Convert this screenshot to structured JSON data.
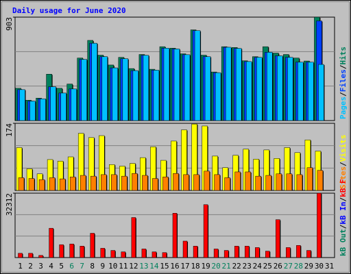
{
  "chart_data": {
    "type": "bar",
    "title": "Daily usage for June 2020",
    "categories": [
      1,
      2,
      3,
      4,
      5,
      6,
      7,
      8,
      9,
      10,
      11,
      12,
      13,
      14,
      15,
      16,
      17,
      18,
      19,
      20,
      21,
      22,
      23,
      24,
      25,
      26,
      27,
      28,
      29,
      30,
      31
    ],
    "category_colors": [
      "#000000",
      "#000000",
      "#000000",
      "#000000",
      "#000000",
      "#00805c",
      "#00805c",
      "#000000",
      "#000000",
      "#000000",
      "#000000",
      "#000000",
      "#00805c",
      "#00805c",
      "#000000",
      "#000000",
      "#000000",
      "#000000",
      "#000000",
      "#00805c",
      "#00805c",
      "#000000",
      "#000000",
      "#000000",
      "#000000",
      "#000000",
      "#00805c",
      "#00805c",
      "#000000",
      "#000000",
      "#000000"
    ],
    "panels": [
      {
        "ylim": [
          0,
          903
        ],
        "yticks": [
          903
        ],
        "legend_separator": "/",
        "series": [
          {
            "name": "Hits",
            "color": "#00805c",
            "values": [
              282,
              178,
              196,
              405,
              282,
              319,
              546,
              700,
              571,
              485,
              552,
              454,
              577,
              448,
              645,
              632,
              583,
              792,
              571,
              424,
              645,
              638,
              522,
              558,
              645,
              589,
              577,
              546,
              520,
              903,
              null
            ]
          },
          {
            "name": "Files",
            "color": "#0040ff",
            "values": [
              270,
              170,
              190,
              295,
              240,
              276,
              534,
              675,
              558,
              460,
              540,
              436,
              570,
              440,
              632,
              625,
              575,
              785,
              558,
              418,
              640,
              630,
              515,
              552,
              596,
              565,
              552,
              510,
              510,
              870,
              null
            ]
          },
          {
            "name": "Pages",
            "color": "#00c0ff",
            "values": [
              270,
              170,
              190,
              295,
              240,
              276,
              534,
              675,
              558,
              460,
              540,
              436,
              570,
              440,
              632,
              625,
              575,
              785,
              558,
              418,
              640,
              630,
              515,
              552,
              596,
              565,
              552,
              510,
              510,
              490,
              null
            ]
          }
        ]
      },
      {
        "ylim": [
          0,
          174
        ],
        "yticks": [
          174
        ],
        "legend_separator": "/",
        "series": [
          {
            "name": "Visits",
            "color": "#ffff00",
            "values": [
              111,
              56,
              43,
              80,
              76,
              87,
              148,
              137,
              142,
              67,
              63,
              70,
              85,
              113,
              78,
              128,
              157,
              172,
              167,
              89,
              59,
              91,
              107,
              81,
              105,
              83,
              111,
              98,
              131,
              102,
              null
            ]
          },
          {
            "name": "Sites",
            "color": "#ff8000",
            "values": [
              33,
              31,
              28,
              33,
              30,
              35,
              39,
              37,
              41,
              41,
              37,
              44,
              39,
              31,
              35,
              44,
              41,
              41,
              50,
              41,
              33,
              48,
              48,
              37,
              39,
              43,
              43,
              41,
              59,
              52,
              null
            ]
          }
        ]
      },
      {
        "ylim": [
          0,
          32312
        ],
        "yticks": [
          32312
        ],
        "legend_separator": "/",
        "series": [
          {
            "name": "kB F",
            "color": "#ff0000",
            "values": [
              2154,
              2154,
              1077,
              14719,
              6462,
              6821,
              5744,
              12206,
              4667,
              3590,
              2872,
              20102,
              4308,
              2872,
              2513,
              22256,
              8257,
              5744,
              26566,
              4308,
              3590,
              5744,
              5744,
              5026,
              3231,
              19026,
              5026,
              6103,
              3590,
              32312,
              null
            ]
          },
          {
            "name": "kB In",
            "color": "#0000ff"
          },
          {
            "name": "kB Out",
            "color": "#00805c"
          }
        ]
      }
    ]
  }
}
